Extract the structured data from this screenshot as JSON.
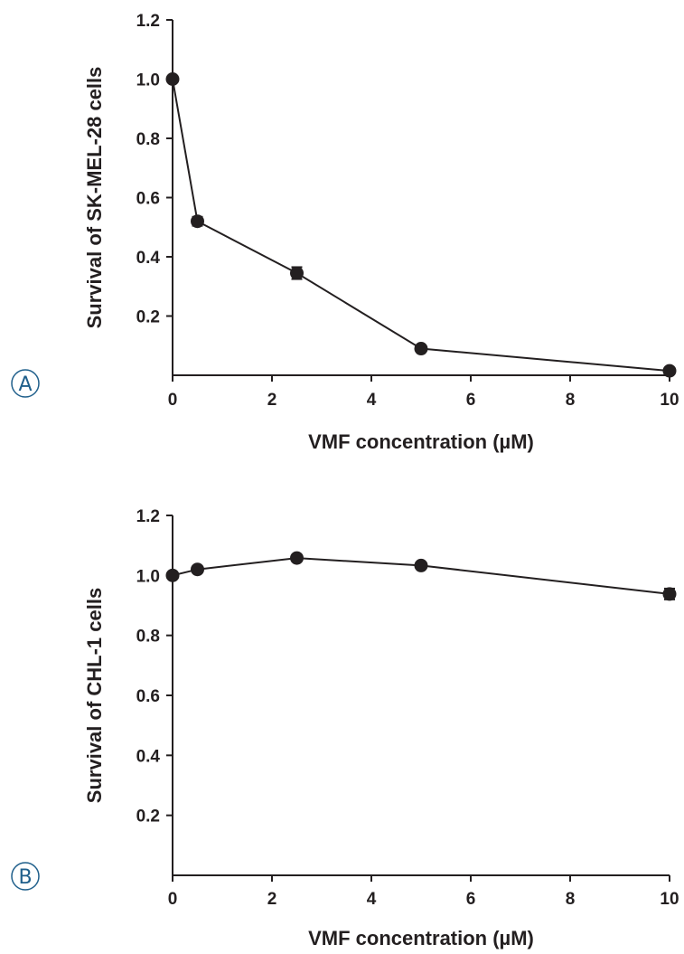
{
  "chart_data": [
    {
      "type": "line",
      "panel_label": "A",
      "title": "",
      "xlabel": "VMF concentration (µM)",
      "ylabel": "Survival of SK-MEL-28 cells",
      "xlim": [
        0,
        10
      ],
      "ylim": [
        0,
        1.2
      ],
      "x_ticks": [
        "0",
        "2",
        "4",
        "6",
        "8",
        "10"
      ],
      "y_ticks": [
        "0.2",
        "0.4",
        "0.6",
        "0.8",
        "1.0",
        "1.2"
      ],
      "x_tick_values": [
        0,
        2,
        4,
        6,
        8,
        10
      ],
      "y_tick_values": [
        0.2,
        0.4,
        0.6,
        0.8,
        1.0,
        1.2
      ],
      "x_positions": [
        0,
        0.5,
        2.5,
        5,
        10
      ],
      "x_axis_broken": true,
      "grid": false,
      "marker": "circle",
      "color": "#231f20",
      "series": [
        {
          "x": [
            0,
            0.5,
            2.5,
            5,
            10
          ],
          "values": [
            1.0,
            0.52,
            0.345,
            0.09,
            0.015
          ],
          "error": [
            0.0,
            0.015,
            0.02,
            0.008,
            0.005
          ]
        }
      ]
    },
    {
      "type": "line",
      "panel_label": "B",
      "title": "",
      "xlabel": "VMF concentration (µM)",
      "ylabel": "Survival of CHL-1 cells",
      "xlim": [
        0,
        10
      ],
      "ylim": [
        0,
        1.2
      ],
      "x_ticks": [
        "0",
        "2",
        "4",
        "6",
        "8",
        "10"
      ],
      "y_ticks": [
        "0.2",
        "0.4",
        "0.6",
        "0.8",
        "1.0",
        "1.2"
      ],
      "x_tick_values": [
        0,
        2,
        4,
        6,
        8,
        10
      ],
      "y_tick_values": [
        0.2,
        0.4,
        0.6,
        0.8,
        1.0,
        1.2
      ],
      "x_positions": [
        0,
        0.5,
        2.5,
        5,
        10
      ],
      "x_axis_broken": true,
      "grid": false,
      "marker": "circle",
      "color": "#231f20",
      "series": [
        {
          "x": [
            0,
            0.5,
            2.5,
            5,
            10
          ],
          "values": [
            1.0,
            1.02,
            1.058,
            1.033,
            0.938
          ],
          "error": [
            0.0,
            0.01,
            0.01,
            0.01,
            0.018
          ]
        }
      ]
    }
  ]
}
